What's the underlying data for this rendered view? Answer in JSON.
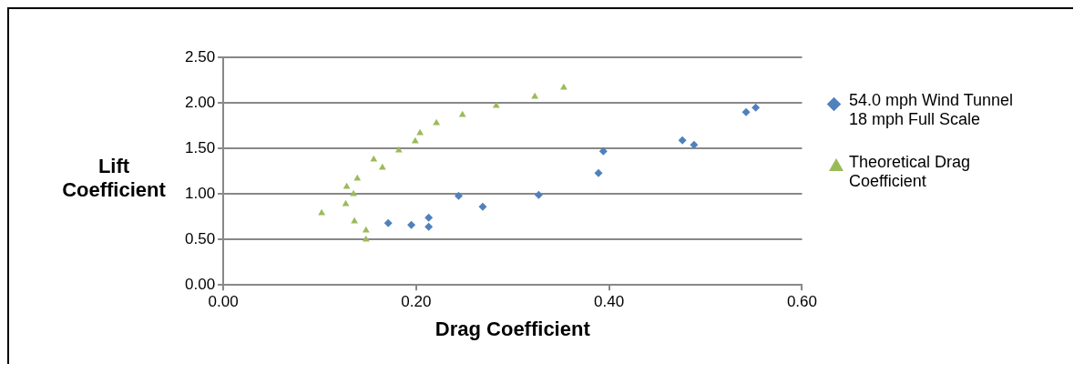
{
  "chart_data": {
    "type": "scatter",
    "xlabel": "Drag Coefficient",
    "ylabel": "Lift Coefficient",
    "xlim": [
      0,
      0.6
    ],
    "xticks": [
      {
        "value": 0,
        "label": "0.00"
      },
      {
        "value": 0.2,
        "label": "0.20"
      },
      {
        "value": 0.4,
        "label": "0.40"
      },
      {
        "value": 0.6,
        "label": "0.60"
      }
    ],
    "ylim": [
      0,
      2.5
    ],
    "yticks": [
      {
        "value": 0,
        "label": "0.00"
      },
      {
        "value": 0.5,
        "label": "0.50"
      },
      {
        "value": 1,
        "label": "1.00"
      },
      {
        "value": 1.5,
        "label": "1.50"
      },
      {
        "value": 2,
        "label": "2.00"
      },
      {
        "value": 2.5,
        "label": "2.50"
      }
    ],
    "grid": "y",
    "legend": "right",
    "series": [
      {
        "name": "54.0 mph Wind Tunnel 18 mph Full Scale",
        "color": "#4f81bd",
        "marker": "diamond",
        "x": [
          0.171,
          0.195,
          0.213,
          0.213,
          0.244,
          0.269,
          0.327,
          0.389,
          0.394,
          0.476,
          0.488,
          0.542,
          0.552
        ],
        "values": [
          0.68,
          0.66,
          0.74,
          0.64,
          0.98,
          0.86,
          0.99,
          1.23,
          1.47,
          1.59,
          1.54,
          1.9,
          1.95
        ]
      },
      {
        "name": "Theoretical Drag Coefficient",
        "color": "#9bbb59",
        "marker": "triangle",
        "x": [
          0.102,
          0.128,
          0.139,
          0.135,
          0.127,
          0.136,
          0.148,
          0.148,
          0.156,
          0.165,
          0.182,
          0.199,
          0.204,
          0.221,
          0.248,
          0.283,
          0.323,
          0.353
        ],
        "values": [
          0.79,
          1.08,
          1.17,
          1.0,
          0.89,
          0.7,
          0.6,
          0.5,
          1.38,
          1.29,
          1.48,
          1.58,
          1.67,
          1.78,
          1.87,
          1.97,
          2.07,
          2.17
        ]
      }
    ]
  }
}
